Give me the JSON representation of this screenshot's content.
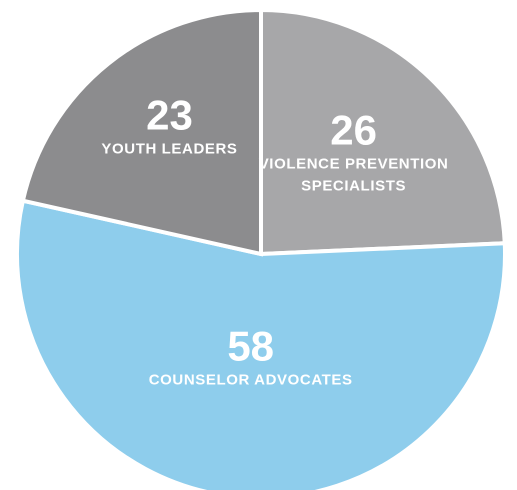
{
  "chart_data": {
    "type": "pie",
    "title": "",
    "slices": [
      {
        "value": 26,
        "value_label": "26",
        "label_lines": [
          "VIOLENCE PREVENTION",
          "SPECIALISTS"
        ],
        "color": "#a7a7a9"
      },
      {
        "value": 58,
        "value_label": "58",
        "label_lines": [
          "COUNSELOR ADVOCATES"
        ],
        "color": "#8ecdec"
      },
      {
        "value": 23,
        "value_label": "23",
        "label_lines": [
          "YOUTH LEADERS"
        ],
        "color": "#8c8c8e"
      }
    ],
    "legend": "none",
    "grid": false
  }
}
